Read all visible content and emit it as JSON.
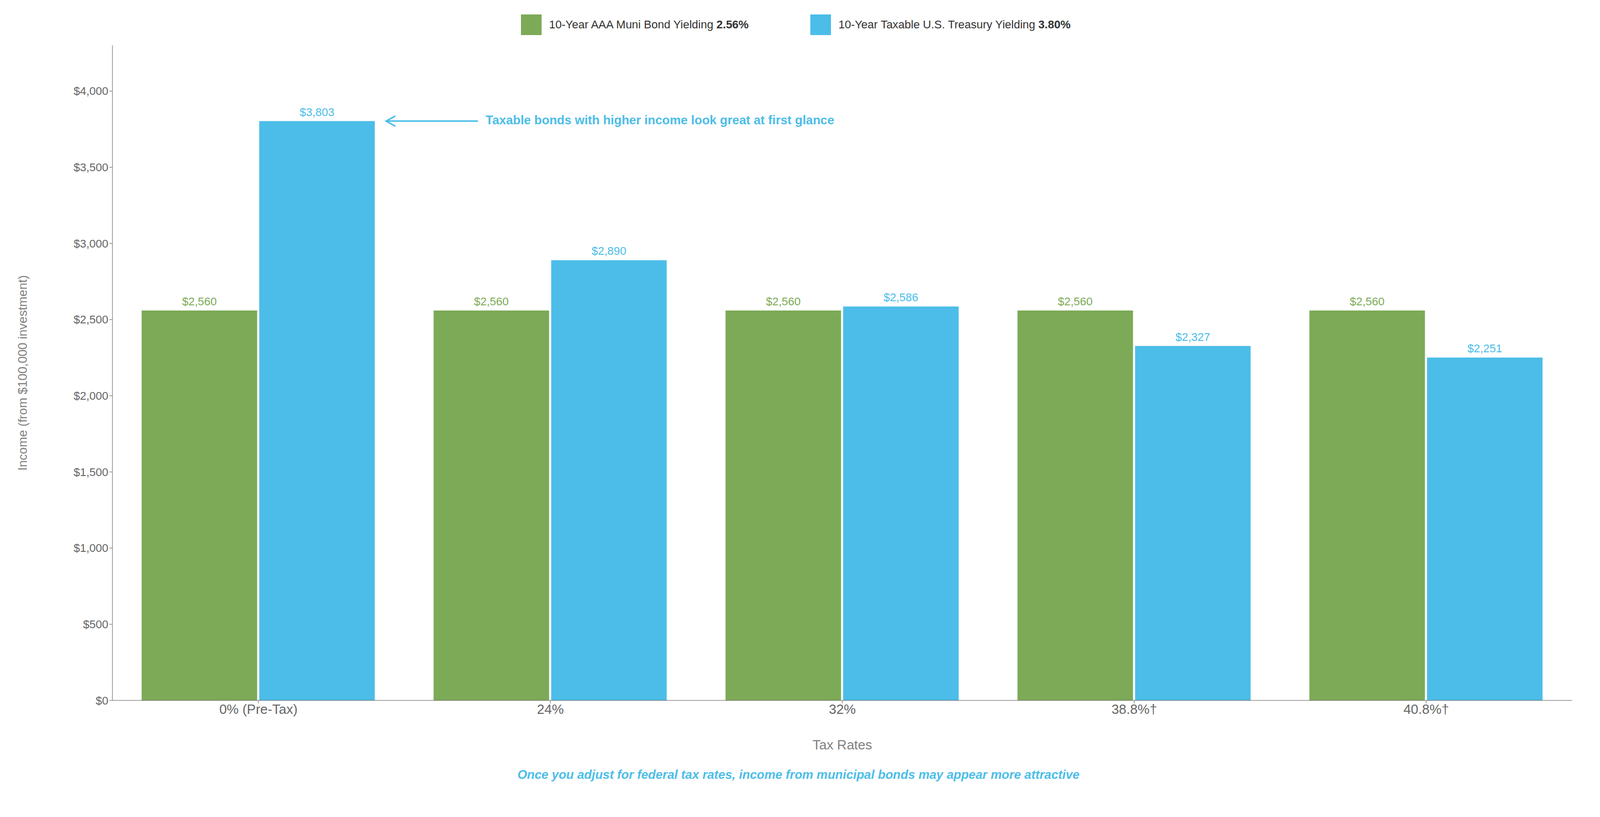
{
  "chart_data": {
    "type": "bar",
    "categories": [
      "0% (Pre-Tax)",
      "24%",
      "32%",
      "38.8%†",
      "40.8%†"
    ],
    "series": [
      {
        "name": "10-Year AAA Muni Bond Yielding 2.56%",
        "color": "#7daa57",
        "values": [
          2560,
          2560,
          2560,
          2560,
          2560
        ],
        "value_labels": [
          "$2,560",
          "$2,560",
          "$2,560",
          "$2,560",
          "$2,560"
        ]
      },
      {
        "name": "10-Year Taxable U.S. Treasury Yielding 3.80%",
        "color": "#4bbde8",
        "values": [
          3803,
          2890,
          2586,
          2327,
          2251
        ],
        "value_labels": [
          "$3,803",
          "$2,890",
          "$2,586",
          "$2,327",
          "$2,251"
        ]
      }
    ],
    "xlabel": "Tax Rates",
    "ylabel": "Income (from $100,000 investment)",
    "ylim": [
      0,
      4300
    ],
    "yticks": [
      {
        "value": 0,
        "label": "$0"
      },
      {
        "value": 500,
        "label": "$500"
      },
      {
        "value": 1000,
        "label": "$1,000"
      },
      {
        "value": 1500,
        "label": "$1,500"
      },
      {
        "value": 2000,
        "label": "$2,000"
      },
      {
        "value": 2500,
        "label": "$2,500"
      },
      {
        "value": 3000,
        "label": "$3,000"
      },
      {
        "value": 3500,
        "label": "$3,500"
      },
      {
        "value": 4000,
        "label": "$4,000"
      }
    ],
    "grid": false,
    "legend": "top",
    "data_labels": true,
    "annotations": [
      {
        "text": "Taxable bonds with higher income look great at first glance",
        "color": "#4bbde8",
        "category": "0% (Pre-Tax)",
        "value": 3803
      },
      {
        "text": "Once you adjust for federal tax rates, income from municipal bonds may appear more attractive",
        "color": "#4bbde8"
      }
    ]
  }
}
